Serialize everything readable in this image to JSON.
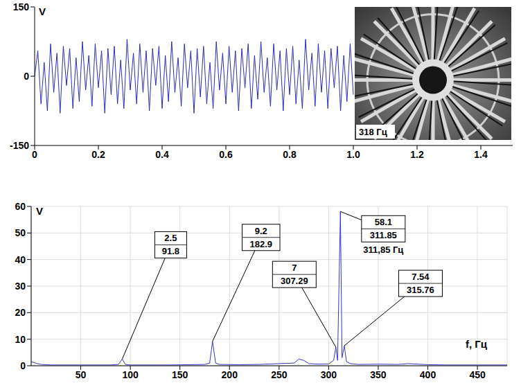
{
  "chart_data": [
    {
      "type": "line",
      "y_label": "V",
      "xlim": [
        0,
        1.5
      ],
      "ylim": [
        -150,
        150
      ],
      "xticks": [
        0,
        0.2,
        0.4,
        0.6,
        0.8,
        {
          "value": 1,
          "label": "1.0"
        },
        1.2,
        1.4
      ],
      "yticks": [
        -150,
        0,
        150
      ],
      "grid": false,
      "annotations": [
        {
          "text": "318 Гц"
        }
      ],
      "x": [
        0,
        0.01,
        0.02,
        0.03,
        0.04,
        0.05,
        0.06,
        0.07,
        0.08,
        0.09,
        0.1,
        0.11,
        0.12,
        0.13,
        0.14,
        0.15,
        0.16,
        0.17,
        0.18,
        0.19,
        0.2,
        0.21,
        0.22,
        0.23,
        0.24,
        0.25,
        0.26,
        0.27,
        0.28,
        0.29,
        0.3,
        0.31,
        0.32,
        0.33,
        0.34,
        0.35,
        0.36,
        0.37,
        0.38,
        0.39,
        0.4,
        0.41,
        0.42,
        0.43,
        0.44,
        0.45,
        0.46,
        0.47,
        0.48,
        0.49,
        0.5,
        0.51,
        0.52,
        0.53,
        0.54,
        0.55,
        0.56,
        0.57,
        0.58,
        0.59,
        0.6,
        0.61,
        0.62,
        0.63,
        0.64,
        0.65,
        0.66,
        0.67,
        0.68,
        0.69,
        0.7,
        0.71,
        0.72,
        0.73,
        0.74,
        0.75,
        0.76,
        0.77,
        0.78,
        0.79,
        0.8,
        0.81,
        0.82,
        0.83,
        0.84,
        0.85,
        0.86,
        0.87,
        0.88,
        0.89,
        0.9,
        0.91,
        0.92,
        0.93,
        0.94,
        0.95,
        0.96,
        0.97,
        0.98,
        0.99,
        1.0
      ],
      "series": [
        {
          "color": "#2b2bb8",
          "values": [
            0,
            55,
            -60,
            30,
            -75,
            70,
            -35,
            50,
            -80,
            65,
            -20,
            60,
            -70,
            40,
            -55,
            75,
            -30,
            45,
            -65,
            70,
            -25,
            55,
            -80,
            60,
            -40,
            65,
            -60,
            35,
            -70,
            80,
            -30,
            50,
            -60,
            70,
            -35,
            55,
            -75,
            60,
            -20,
            65,
            -70,
            45,
            -55,
            75,
            -35,
            40,
            -65,
            70,
            -25,
            55,
            -80,
            60,
            -45,
            65,
            -60,
            30,
            -70,
            75,
            -30,
            50,
            -60,
            65,
            -35,
            55,
            -75,
            60,
            -25,
            70,
            -70,
            45,
            -50,
            75,
            -35,
            40,
            -65,
            70,
            -30,
            55,
            -75,
            60,
            -40,
            65,
            -60,
            35,
            -70,
            80,
            -30,
            50,
            -65,
            70,
            -35,
            55,
            -70,
            60,
            -25,
            65,
            -75,
            45,
            -55,
            70,
            -40
          ]
        }
      ]
    },
    {
      "type": "line",
      "y_label": "V",
      "x_label": "f, Гц",
      "xlim": [
        0,
        480
      ],
      "ylim": [
        0,
        60
      ],
      "xticks": [
        50,
        100,
        150,
        200,
        250,
        300,
        350,
        400,
        450
      ],
      "yticks": [
        0,
        10,
        20,
        30,
        40,
        50,
        60
      ],
      "grid": true,
      "annotations": [
        {
          "x": 91.8,
          "y": 2.5
        },
        {
          "x": 182.9,
          "y": 9.2
        },
        {
          "x": 307.29,
          "y": 7
        },
        {
          "x": 311.85,
          "y": 58.1,
          "text": "311,85 Гц"
        },
        {
          "x": 315.76,
          "y": 7.54
        }
      ],
      "x": [
        0,
        3,
        6,
        10,
        20,
        30,
        40,
        50,
        60,
        70,
        80,
        88,
        91.8,
        95,
        100,
        120,
        140,
        160,
        175,
        180,
        182.9,
        186,
        190,
        210,
        230,
        250,
        265,
        270,
        275,
        280,
        290,
        300,
        305,
        307.29,
        309,
        311.85,
        313.5,
        315.76,
        318,
        322,
        330,
        350,
        370,
        380,
        400,
        420,
        440,
        460,
        480
      ],
      "series": [
        {
          "color": "#3434cc",
          "values": [
            1.5,
            1.2,
            0.8,
            0.5,
            0.3,
            0.3,
            0.3,
            0.3,
            0.3,
            0.3,
            0.3,
            0.5,
            2.5,
            0.5,
            0.3,
            0.3,
            0.3,
            0.4,
            0.5,
            1.0,
            9.2,
            1.0,
            0.5,
            0.4,
            0.5,
            0.8,
            1,
            2.5,
            2,
            0.8,
            0.6,
            0.7,
            2,
            7,
            2,
            58.1,
            3,
            7.54,
            1.5,
            0.8,
            0.5,
            0.6,
            0.5,
            0.8,
            0.4,
            0.3,
            0.3,
            0.3,
            0.3
          ]
        }
      ]
    }
  ]
}
